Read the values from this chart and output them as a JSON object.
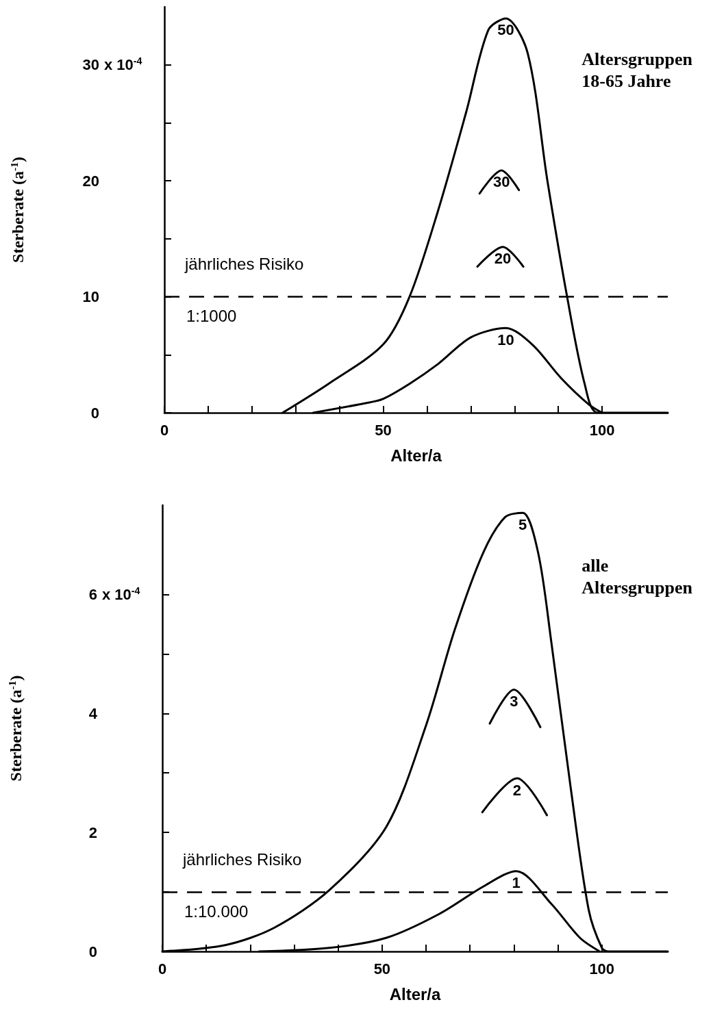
{
  "chart_data": [
    {
      "type": "line",
      "xlabel": "Alter/a",
      "ylabel": "Sterberate (a$^{-1}$)",
      "xlim": [
        0,
        115
      ],
      "ylim": [
        0,
        35
      ],
      "xticks": [
        0,
        {
          "value": 10,
          "label": null
        },
        {
          "value": 20,
          "label": null
        },
        {
          "value": 30,
          "label": null
        },
        {
          "value": 40,
          "label": null
        },
        50,
        {
          "value": 60,
          "label": null
        },
        {
          "value": 70,
          "label": null
        },
        {
          "value": 80,
          "label": null
        },
        {
          "value": 90,
          "label": null
        },
        100
      ],
      "yticks": [
        0,
        {
          "value": 5,
          "label": null
        },
        10,
        {
          "value": 15,
          "label": null
        },
        20,
        {
          "value": 25,
          "label": null
        },
        30
      ],
      "grid": false,
      "legend": false,
      "marker": "none",
      "line_style": "solid",
      "series": [
        {
          "name": "50",
          "color": "#000000",
          "x": [
            27,
            37.5,
            50,
            56,
            62.5,
            69,
            74,
            78,
            83,
            87.5,
            92,
            96,
            99,
            115
          ],
          "values": [
            0,
            2.5,
            5.9,
            10,
            17.4,
            26,
            33,
            34,
            31,
            20,
            10,
            2.5,
            0,
            0
          ]
        },
        {
          "name": "30",
          "color": "#000000",
          "x": [
            72,
            77,
            81
          ],
          "values": [
            18.9,
            20.9,
            19.2
          ]
        },
        {
          "name": "20",
          "color": "#000000",
          "x": [
            71.5,
            77.3,
            82
          ],
          "values": [
            12.6,
            14.3,
            12.6
          ]
        },
        {
          "name": "10",
          "color": "#000000",
          "x": [
            34,
            47,
            50,
            56,
            62.5,
            70,
            78,
            84,
            90.6,
            97,
            100
          ],
          "values": [
            0,
            0.9,
            1.2,
            2.5,
            4.2,
            6.5,
            7.3,
            5.9,
            3,
            0.7,
            0
          ]
        }
      ],
      "ref_lines": [
        {
          "axis": "y",
          "value": 10,
          "color": "#000000",
          "line_style": "dashed"
        }
      ],
      "annotations": [
        "jährliches Risiko",
        "1:1000",
        "x 10$^{-4}$",
        "Altersgruppen\n18-65 Jahre"
      ]
    },
    {
      "type": "line",
      "xlabel": "Alter/a",
      "ylabel": "Sterberate (a$^{-1}$)",
      "xlim": [
        0,
        115
      ],
      "ylim": [
        0,
        7.5
      ],
      "xticks": [
        0,
        {
          "value": 10,
          "label": null
        },
        {
          "value": 20,
          "label": null
        },
        {
          "value": 30,
          "label": null
        },
        {
          "value": 40,
          "label": null
        },
        50,
        {
          "value": 60,
          "label": null
        },
        {
          "value": 70,
          "label": null
        },
        {
          "value": 80,
          "label": null
        },
        {
          "value": 90,
          "label": null
        },
        100
      ],
      "yticks": [
        0,
        {
          "value": 1,
          "label": null
        },
        2,
        {
          "value": 3,
          "label": null
        },
        4,
        {
          "value": 5,
          "label": null
        },
        6
      ],
      "grid": false,
      "legend": false,
      "marker": "none",
      "line_style": "solid",
      "series": [
        {
          "name": "5",
          "color": "#000000",
          "x": [
            0,
            14.5,
            25.5,
            38,
            51,
            60,
            66.5,
            73,
            78,
            82,
            85.5,
            88.5,
            93,
            97,
            100,
            101.5,
            115
          ],
          "values": [
            0,
            0.11,
            0.4,
            1.03,
            2.1,
            3.8,
            5.4,
            6.7,
            7.3,
            7.37,
            6.7,
            5.2,
            2.7,
            0.7,
            0.06,
            0,
            0
          ]
        },
        {
          "name": "3",
          "color": "#000000",
          "x": [
            74.5,
            80,
            86
          ],
          "values": [
            3.83,
            4.4,
            3.77
          ]
        },
        {
          "name": "2",
          "color": "#000000",
          "x": [
            72.8,
            80.7,
            87.5
          ],
          "values": [
            2.34,
            2.91,
            2.29
          ]
        },
        {
          "name": "1",
          "color": "#000000",
          "x": [
            22,
            38,
            51,
            63,
            73,
            80.5,
            88.5,
            95,
            99.5
          ],
          "values": [
            0,
            0.06,
            0.23,
            0.63,
            1.09,
            1.35,
            0.8,
            0.23,
            0
          ]
        }
      ],
      "ref_lines": [
        {
          "axis": "y",
          "value": 1,
          "color": "#000000",
          "line_style": "dashed"
        }
      ],
      "annotations": [
        "jährliches Risiko",
        "1:10.000",
        "x 10$^{-4}$",
        "alle\nAltersgruppen"
      ]
    }
  ]
}
